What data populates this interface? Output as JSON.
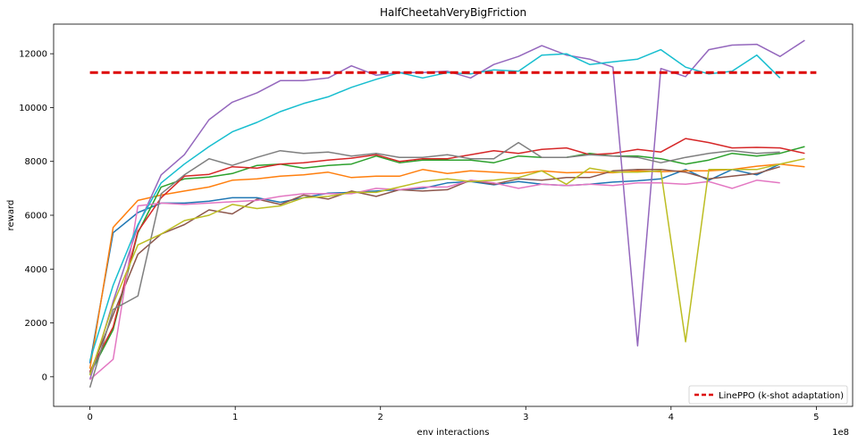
{
  "chart_data": {
    "type": "line",
    "title": "HalfCheetahVeryBigFriction",
    "xlabel": "env interactions",
    "ylabel": "reward",
    "x_offset_label": "1e8",
    "xlim": [
      -0.25,
      5.25
    ],
    "ylim": [
      -1100,
      13100
    ],
    "xticks": [
      0,
      1,
      2,
      3,
      4,
      5
    ],
    "xtick_labels": [
      "0",
      "1",
      "2",
      "3",
      "4",
      "5"
    ],
    "yticks": [
      0,
      2000,
      4000,
      6000,
      8000,
      10000,
      12000
    ],
    "ytick_labels": [
      "0",
      "2000",
      "4000",
      "6000",
      "8000",
      "10000",
      "12000"
    ],
    "grid": false,
    "legend": {
      "position": "bottom-right",
      "entries": [
        {
          "label": "LinePPO (k-shot adaptation)",
          "color": "#dd0000",
          "style": "dashed"
        }
      ]
    },
    "reference_line": {
      "label": "LinePPO (k-shot adaptation)",
      "y": 11300,
      "x_range": [
        0,
        5
      ],
      "color": "#dd0000"
    },
    "series": [
      {
        "color": "#1f77b4",
        "x": [
          0,
          0.16,
          0.33,
          0.49,
          0.65,
          0.82,
          0.98,
          1.15,
          1.31,
          1.47,
          1.64,
          1.8,
          1.97,
          2.13,
          2.29,
          2.46,
          2.62,
          2.78,
          2.95,
          3.11,
          3.28,
          3.44,
          3.6,
          3.77,
          3.93,
          4.1,
          4.26,
          4.42,
          4.59,
          4.75
        ],
        "y": [
          500,
          5350,
          6100,
          6450,
          6450,
          6520,
          6650,
          6650,
          6480,
          6650,
          6820,
          6850,
          6900,
          6950,
          7000,
          7200,
          7250,
          7130,
          7250,
          7150,
          7100,
          7150,
          7230,
          7280,
          7350,
          7700,
          7300,
          7700,
          7500,
          7900
        ]
      },
      {
        "color": "#ff7f0e",
        "x": [
          0,
          0.16,
          0.33,
          0.49,
          0.65,
          0.82,
          0.98,
          1.15,
          1.31,
          1.47,
          1.64,
          1.8,
          1.97,
          2.13,
          2.29,
          2.46,
          2.62,
          2.78,
          2.95,
          3.11,
          3.28,
          3.44,
          3.6,
          3.77,
          3.93,
          4.1,
          4.26,
          4.42,
          4.59,
          4.75,
          4.92
        ],
        "y": [
          300,
          5550,
          6550,
          6750,
          6900,
          7050,
          7300,
          7350,
          7450,
          7500,
          7600,
          7400,
          7450,
          7450,
          7700,
          7550,
          7650,
          7600,
          7550,
          7650,
          7580,
          7600,
          7580,
          7650,
          7620,
          7650,
          7650,
          7700,
          7820,
          7900,
          7800
        ]
      },
      {
        "color": "#2ca02c",
        "x": [
          0,
          0.16,
          0.33,
          0.49,
          0.65,
          0.82,
          0.98,
          1.15,
          1.31,
          1.47,
          1.64,
          1.8,
          1.97,
          2.13,
          2.29,
          2.46,
          2.62,
          2.78,
          2.95,
          3.11,
          3.28,
          3.44,
          3.6,
          3.77,
          3.93,
          4.1,
          4.26,
          4.42,
          4.59,
          4.75,
          4.92
        ],
        "y": [
          100,
          1750,
          5350,
          7050,
          7350,
          7420,
          7550,
          7850,
          7900,
          7750,
          7850,
          7900,
          8200,
          7950,
          8050,
          8050,
          8050,
          7950,
          8200,
          8150,
          8150,
          8300,
          8200,
          8200,
          8100,
          7900,
          8050,
          8300,
          8200,
          8300,
          8550
        ]
      },
      {
        "color": "#d62728",
        "x": [
          0,
          0.16,
          0.33,
          0.49,
          0.65,
          0.82,
          0.98,
          1.15,
          1.31,
          1.47,
          1.64,
          1.8,
          1.97,
          2.13,
          2.29,
          2.46,
          2.62,
          2.78,
          2.95,
          3.11,
          3.28,
          3.44,
          3.6,
          3.77,
          3.93,
          4.1,
          4.26,
          4.42,
          4.59,
          4.75,
          4.92
        ],
        "y": [
          200,
          1850,
          5400,
          6650,
          7450,
          7520,
          7800,
          7750,
          7900,
          7950,
          8050,
          8120,
          8250,
          8000,
          8100,
          8100,
          8250,
          8400,
          8300,
          8450,
          8500,
          8250,
          8300,
          8450,
          8350,
          8850,
          8700,
          8500,
          8520,
          8500,
          8300
        ]
      },
      {
        "color": "#9467bd",
        "x": [
          0,
          0.16,
          0.33,
          0.49,
          0.65,
          0.82,
          0.98,
          1.15,
          1.31,
          1.47,
          1.64,
          1.8,
          1.97,
          2.13,
          2.29,
          2.46,
          2.62,
          2.78,
          2.95,
          3.11,
          3.28,
          3.44,
          3.6,
          3.77,
          3.93,
          4.1,
          4.26,
          4.42,
          4.59,
          4.75,
          4.92
        ],
        "y": [
          -100,
          2800,
          5600,
          7500,
          8250,
          9550,
          10200,
          10550,
          11000,
          11000,
          11100,
          11550,
          11200,
          11300,
          11300,
          11350,
          11100,
          11600,
          11900,
          12300,
          11950,
          11800,
          11500,
          1150,
          11450,
          11150,
          12150,
          12320,
          12350,
          11900,
          12500
        ]
      },
      {
        "color": "#8c564b",
        "x": [
          0,
          0.16,
          0.33,
          0.49,
          0.65,
          0.82,
          0.98,
          1.15,
          1.31,
          1.47,
          1.64,
          1.8,
          1.97,
          2.13,
          2.29,
          2.46,
          2.62,
          2.78,
          2.95,
          3.11,
          3.28,
          3.44,
          3.6,
          3.77,
          3.93,
          4.1,
          4.26,
          4.42,
          4.59,
          4.75
        ],
        "y": [
          150,
          2300,
          4550,
          5300,
          5650,
          6200,
          6050,
          6600,
          6400,
          6750,
          6600,
          6900,
          6700,
          6950,
          6900,
          6950,
          7300,
          7150,
          7350,
          7300,
          7400,
          7400,
          7650,
          7700,
          7700,
          7600,
          7350,
          7450,
          7550,
          7800
        ]
      },
      {
        "color": "#e377c2",
        "x": [
          0,
          0.16,
          0.33,
          0.49,
          0.65,
          0.82,
          0.98,
          1.15,
          1.31,
          1.47,
          1.64,
          1.8,
          1.97,
          2.13,
          2.29,
          2.46,
          2.62,
          2.78,
          2.95,
          3.11,
          3.28,
          3.44,
          3.6,
          3.77,
          3.93,
          4.1,
          4.26,
          4.42,
          4.59,
          4.75
        ],
        "y": [
          -100,
          650,
          6350,
          6450,
          6400,
          6450,
          6500,
          6550,
          6700,
          6800,
          6800,
          6800,
          7000,
          6950,
          7050,
          7050,
          7300,
          7200,
          7000,
          7150,
          7100,
          7150,
          7100,
          7200,
          7200,
          7150,
          7250,
          7000,
          7300,
          7200
        ]
      },
      {
        "color": "#7f7f7f",
        "x": [
          0,
          0.16,
          0.33,
          0.49,
          0.65,
          0.82,
          0.98,
          1.15,
          1.31,
          1.47,
          1.64,
          1.8,
          1.97,
          2.13,
          2.29,
          2.46,
          2.62,
          2.78,
          2.95,
          3.11,
          3.28,
          3.44,
          3.6,
          3.77,
          3.93,
          4.1,
          4.26,
          4.42,
          4.59,
          4.75
        ],
        "y": [
          -400,
          2500,
          3000,
          6800,
          7500,
          8100,
          7850,
          8150,
          8400,
          8300,
          8350,
          8200,
          8300,
          8150,
          8150,
          8250,
          8100,
          8100,
          8700,
          8150,
          8150,
          8250,
          8200,
          8150,
          7950,
          8150,
          8300,
          8400,
          8300,
          8350
        ]
      },
      {
        "color": "#bcbd22",
        "x": [
          0,
          0.16,
          0.33,
          0.49,
          0.65,
          0.82,
          0.98,
          1.15,
          1.31,
          1.47,
          1.64,
          1.8,
          1.97,
          2.13,
          2.29,
          2.46,
          2.62,
          2.78,
          2.95,
          3.11,
          3.28,
          3.44,
          3.6,
          3.77,
          3.93,
          4.1,
          4.26,
          4.42,
          4.59,
          4.75,
          4.92
        ],
        "y": [
          50,
          2700,
          4900,
          5300,
          5800,
          6000,
          6400,
          6250,
          6350,
          6650,
          6700,
          6850,
          6850,
          7050,
          7250,
          7350,
          7250,
          7300,
          7400,
          7650,
          7150,
          7750,
          7600,
          7600,
          7650,
          1300,
          7700,
          7700,
          7700,
          7900,
          8100
        ]
      },
      {
        "color": "#17becf",
        "x": [
          0,
          0.16,
          0.33,
          0.49,
          0.65,
          0.82,
          0.98,
          1.15,
          1.31,
          1.47,
          1.64,
          1.8,
          1.97,
          2.13,
          2.29,
          2.46,
          2.62,
          2.78,
          2.95,
          3.11,
          3.28,
          3.44,
          3.6,
          3.77,
          3.93,
          4.1,
          4.26,
          4.42,
          4.59,
          4.75
        ],
        "y": [
          600,
          3400,
          5650,
          7200,
          7900,
          8550,
          9100,
          9450,
          9850,
          10150,
          10400,
          10750,
          11050,
          11300,
          11100,
          11300,
          11250,
          11400,
          11350,
          11950,
          12000,
          11600,
          11700,
          11800,
          12150,
          11500,
          11250,
          11350,
          11950,
          11100
        ]
      }
    ]
  }
}
